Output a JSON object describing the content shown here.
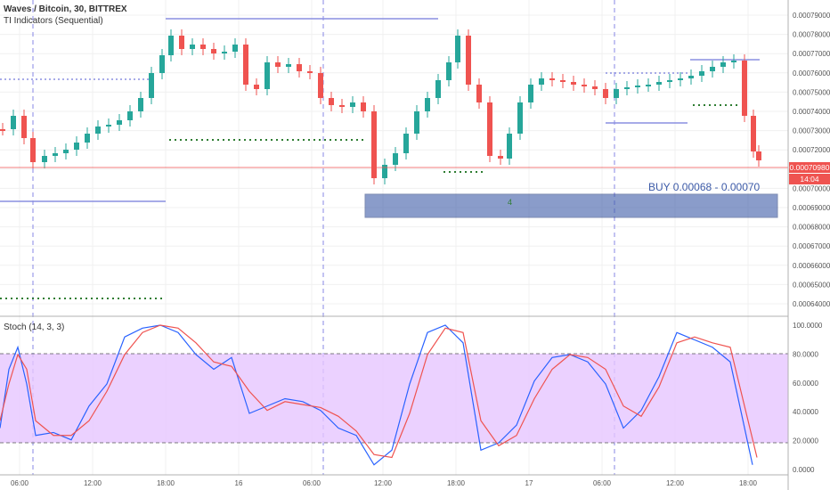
{
  "legend": {
    "main_title": "Waves / Bitcoin, 30, BITTREX",
    "indicator": "TI Indicators (Sequential)",
    "stoch": "Stoch (14, 3, 3)"
  },
  "price": {
    "last_price": "0.00070980",
    "countdown": "14:04",
    "buy_zone_label": "BUY 0.00068 - 0.00070",
    "buy_zone_count": "4",
    "colors": {
      "up": "#26a69a",
      "down": "#ef5350",
      "buy_zone": "#3d5ba8",
      "level": "#8a8fe0",
      "dots": "#2e7d32"
    }
  },
  "chart_data": [
    {
      "type": "candlestick",
      "title": "Waves / Bitcoin, 30, BITTREX",
      "ylim": [
        0.000635,
        0.000795
      ],
      "y_ticks": [
        "0.00079000",
        "0.00078000",
        "0.00077000",
        "0.00076000",
        "0.00075000",
        "0.00074000",
        "0.00073000",
        "0.00072000",
        "0.00071000",
        "0.00070000",
        "0.00069000",
        "0.00068000",
        "0.00067000",
        "0.00066000",
        "0.00065000",
        "0.00064000"
      ],
      "x_ticks": [
        "06:00",
        "12:00",
        "18:00",
        "16",
        "06:00",
        "12:00",
        "18:00",
        "17",
        "06:00",
        "12:00",
        "18:00"
      ],
      "buy_zone": [
        0.00068,
        0.0007
      ]
    },
    {
      "type": "line",
      "title": "Stoch (14, 3, 3)",
      "ylim": [
        0,
        100
      ],
      "y_ticks": [
        "100.0000",
        "80.0000",
        "60.0000",
        "40.0000",
        "20.0000",
        "0.0000"
      ],
      "band": [
        20,
        80
      ],
      "series": [
        {
          "name": "%K",
          "color": "#2962ff",
          "x": [
            0,
            10,
            20,
            30,
            40,
            60,
            80,
            100,
            120,
            140,
            160,
            180,
            200,
            220,
            240,
            260,
            280,
            300,
            320,
            340,
            360,
            380,
            400,
            420,
            440,
            460,
            480,
            500,
            520,
            540,
            560,
            580,
            600,
            620,
            640,
            660,
            680,
            700,
            720,
            740,
            760,
            780,
            800,
            820,
            845
          ],
          "values": [
            30,
            70,
            85,
            60,
            25,
            27,
            22,
            45,
            60,
            92,
            98,
            100,
            95,
            80,
            70,
            78,
            40,
            45,
            50,
            48,
            42,
            30,
            25,
            5,
            15,
            60,
            95,
            100,
            88,
            15,
            20,
            32,
            62,
            78,
            80,
            75,
            60,
            30,
            42,
            65,
            95,
            90,
            85,
            75,
            5
          ]
        },
        {
          "name": "%D",
          "color": "#ef5350",
          "x": [
            0,
            10,
            20,
            30,
            40,
            60,
            80,
            100,
            120,
            140,
            160,
            180,
            200,
            220,
            240,
            260,
            280,
            300,
            320,
            340,
            360,
            380,
            400,
            420,
            440,
            460,
            480,
            500,
            520,
            540,
            560,
            580,
            600,
            620,
            640,
            660,
            680,
            700,
            720,
            740,
            760,
            780,
            800,
            820,
            850
          ],
          "values": [
            35,
            60,
            80,
            70,
            35,
            25,
            25,
            35,
            55,
            80,
            95,
            100,
            98,
            88,
            75,
            72,
            55,
            42,
            48,
            46,
            44,
            38,
            28,
            12,
            10,
            40,
            80,
            98,
            95,
            35,
            18,
            25,
            50,
            70,
            80,
            78,
            70,
            45,
            38,
            58,
            88,
            92,
            88,
            85,
            10
          ]
        }
      ]
    }
  ]
}
